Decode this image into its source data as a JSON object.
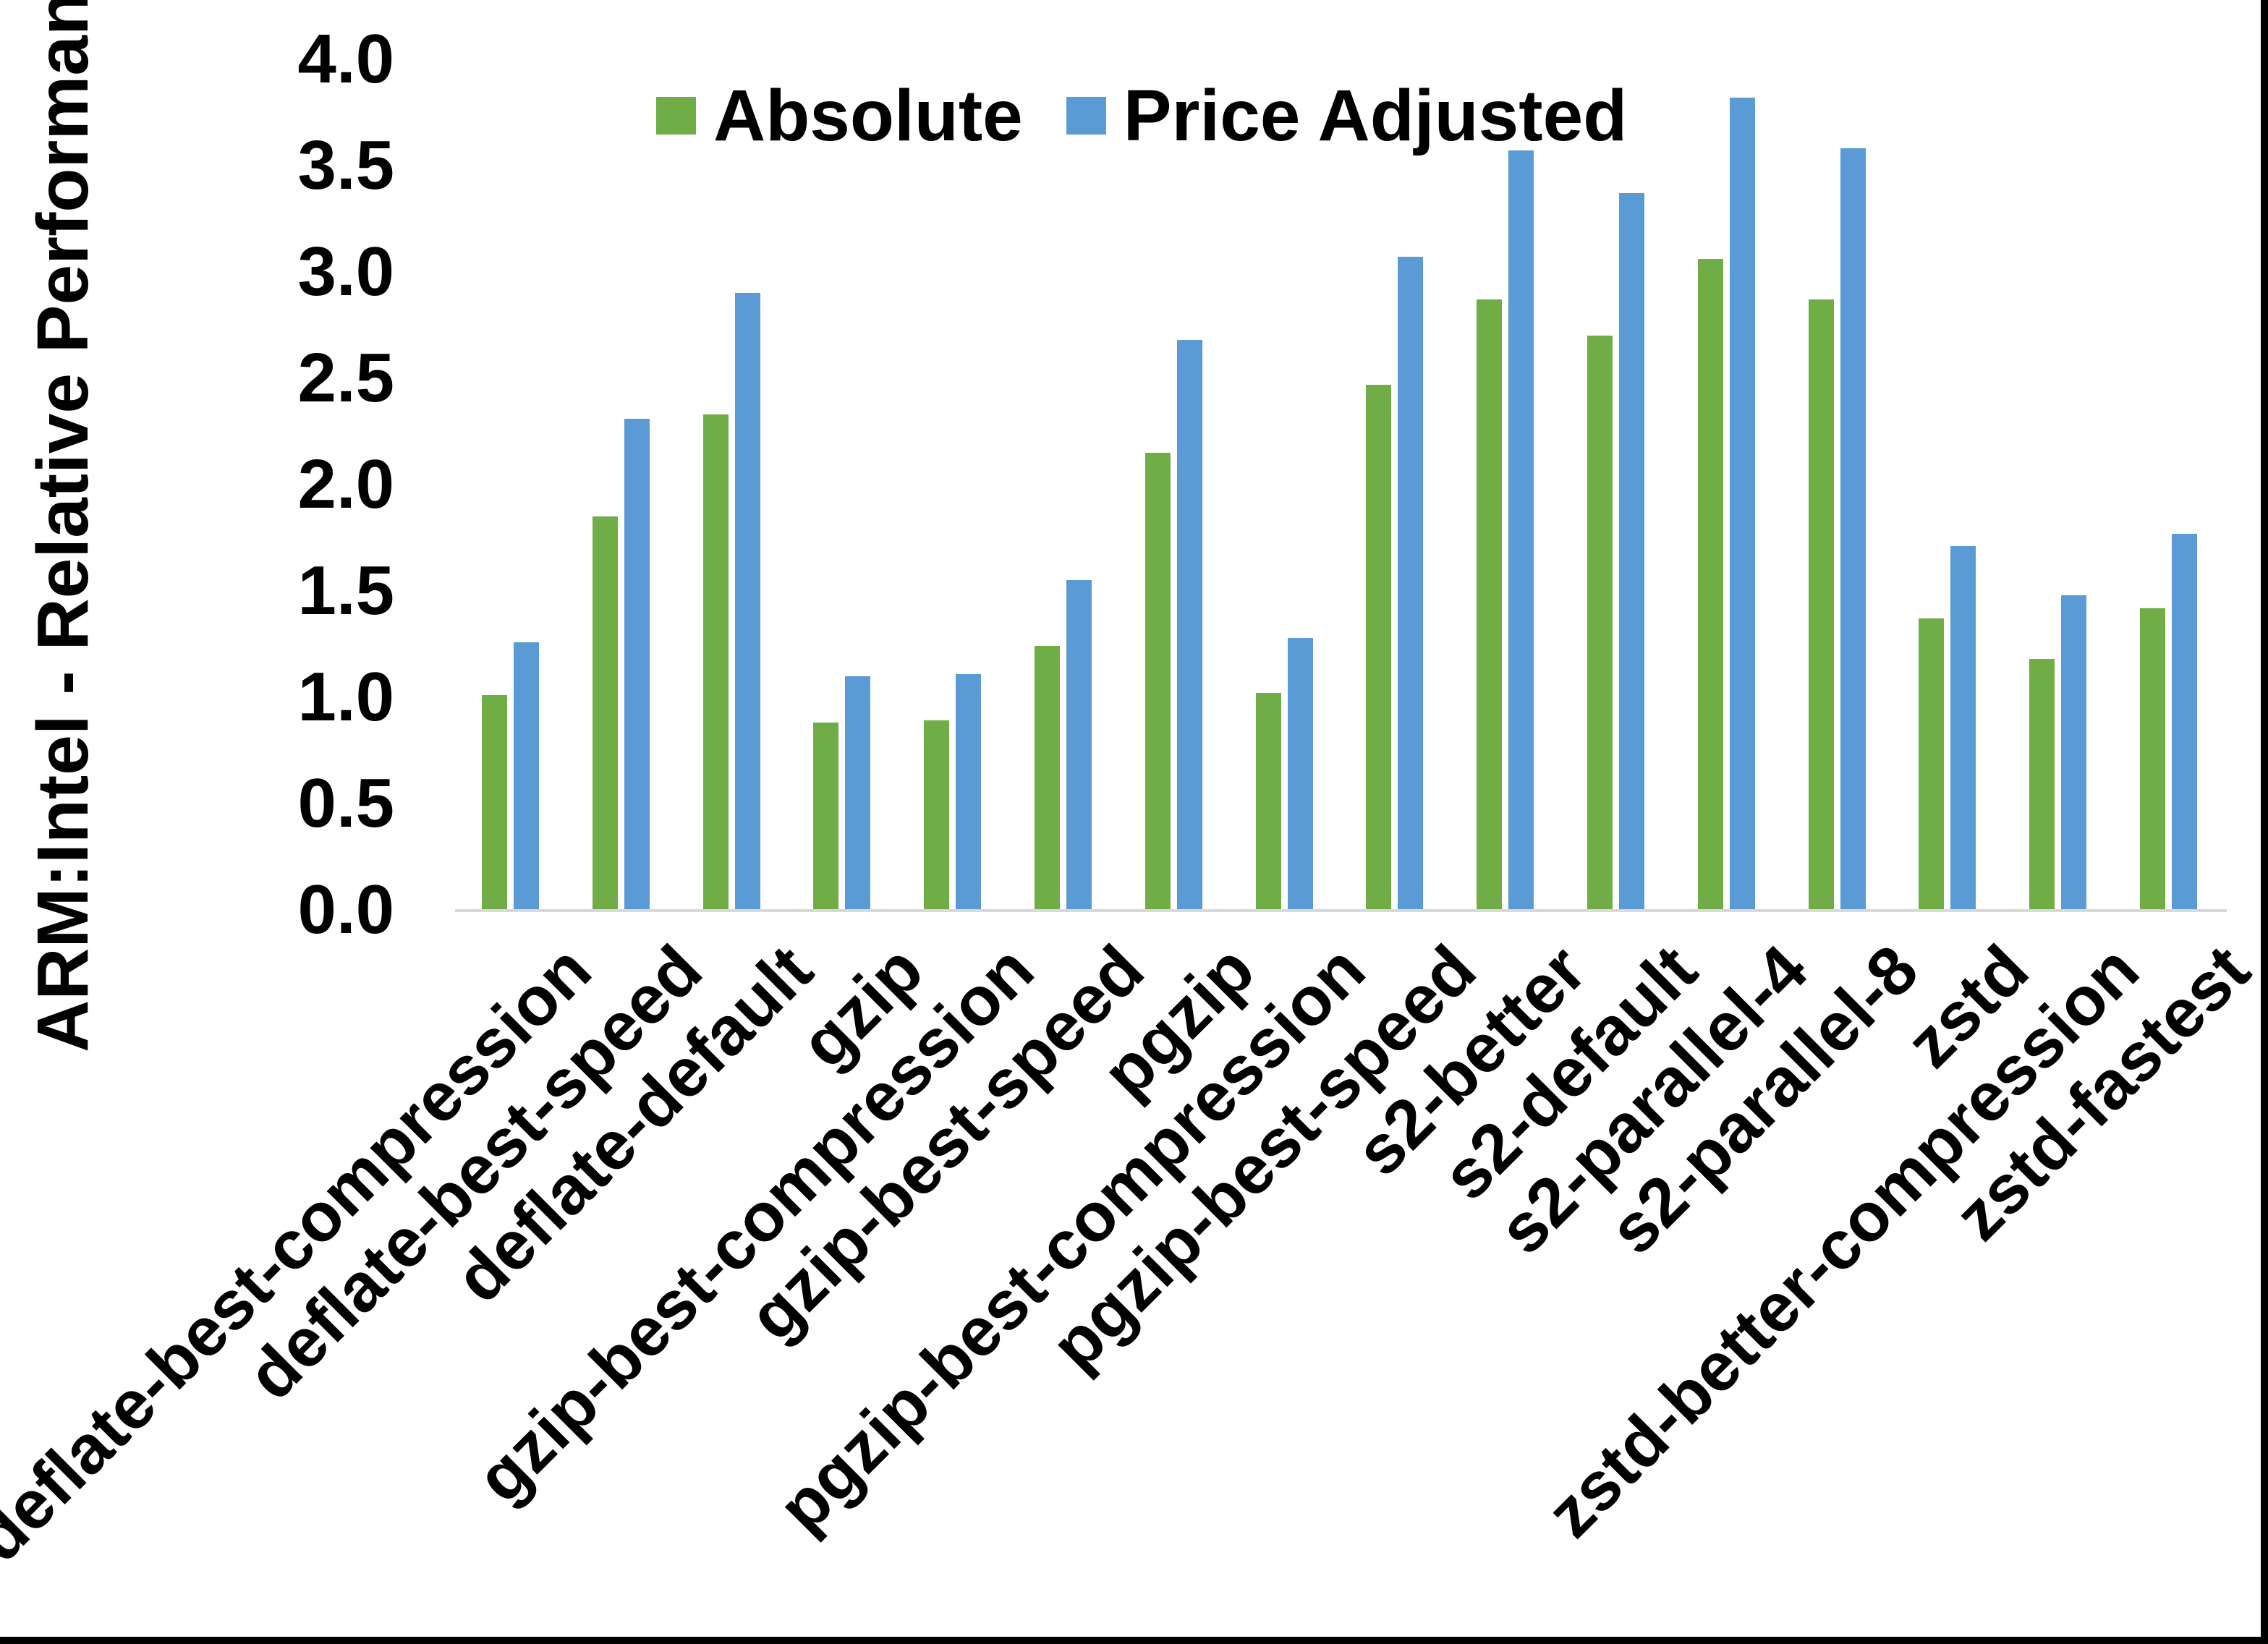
{
  "chart_data": {
    "type": "bar",
    "title": "",
    "xlabel": "",
    "ylabel": "ARM:Intel - Relative Performance",
    "ylim": [
      0.0,
      4.0
    ],
    "ytick_step": 0.5,
    "yticks": [
      "0.0",
      "0.5",
      "1.0",
      "1.5",
      "2.0",
      "2.5",
      "3.0",
      "3.5",
      "4.0"
    ],
    "grid": false,
    "legend_position": "top-center",
    "categories": [
      "deflate-best-compression",
      "deflate-best-speed",
      "deflate-default",
      "gzip",
      "gzip-best-compression",
      "gzip-best-speed",
      "pgzip",
      "pgzip-best-compression",
      "pgzip-best-speed",
      "s2-better",
      "s2-default",
      "s2-parallel-4",
      "s2-parallel-8",
      "zstd",
      "zstd-better-compression",
      "zstd-fastest"
    ],
    "series": [
      {
        "name": "Absolute",
        "color": "#70AD47",
        "values": [
          1.01,
          1.85,
          2.33,
          0.88,
          0.89,
          1.24,
          2.15,
          1.02,
          2.47,
          2.87,
          2.7,
          3.06,
          2.87,
          1.37,
          1.18,
          1.42
        ]
      },
      {
        "name": "Price Adjusted",
        "color": "#5B9BD5",
        "values": [
          1.26,
          2.31,
          2.9,
          1.1,
          1.11,
          1.55,
          2.68,
          1.28,
          3.07,
          3.57,
          3.37,
          3.82,
          3.58,
          1.71,
          1.48,
          1.77
        ]
      }
    ],
    "axis_line_color": "#D9D9D9",
    "background_color": "#FFFFFF",
    "border_color": "#000000"
  }
}
